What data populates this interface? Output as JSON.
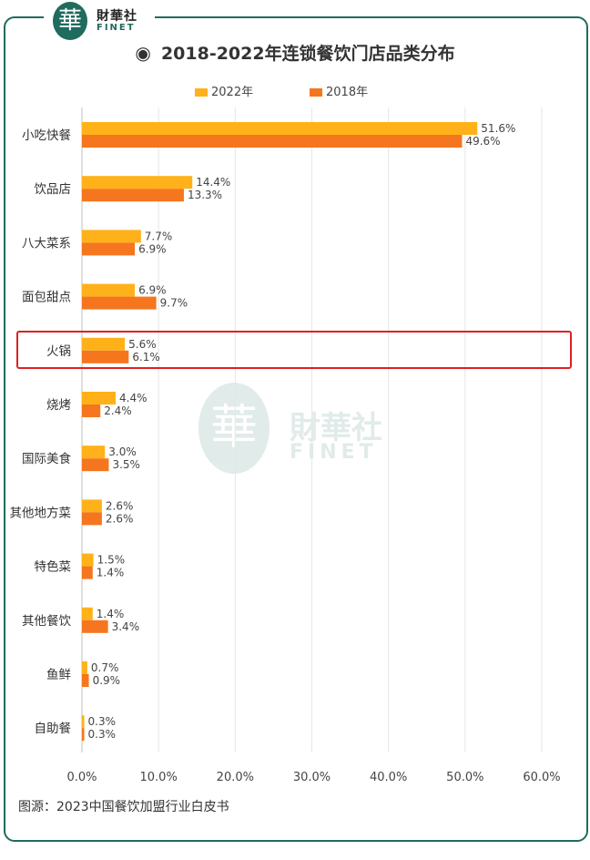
{
  "logo": {
    "glyph": "華",
    "name_cn": "財華社",
    "name_en": "FINET"
  },
  "title_icon": "◉",
  "chart_data": {
    "type": "bar",
    "orientation": "horizontal",
    "title": "2018-2022年连锁餐饮门店品类分布",
    "categories": [
      "小吃快餐",
      "饮品店",
      "八大菜系",
      "面包甜点",
      "火锅",
      "烧烤",
      "国际美食",
      "其他地方菜",
      "特色菜",
      "其他餐饮",
      "鱼鲜",
      "自助餐"
    ],
    "series": [
      {
        "name": "2022年",
        "color": "#ffb119",
        "values": [
          51.6,
          14.4,
          7.7,
          6.9,
          5.6,
          4.4,
          3.0,
          2.6,
          1.5,
          1.4,
          0.7,
          0.3
        ]
      },
      {
        "name": "2018年",
        "color": "#f5761f",
        "values": [
          49.6,
          13.3,
          6.9,
          9.7,
          6.1,
          2.4,
          3.5,
          2.6,
          1.4,
          3.4,
          0.9,
          0.3
        ]
      }
    ],
    "xlim": [
      0,
      60
    ],
    "xticks": [
      "0.0%",
      "10.0%",
      "20.0%",
      "30.0%",
      "40.0%",
      "50.0%",
      "60.0%"
    ],
    "value_suffix": "%",
    "legend_position": "top",
    "grid": true,
    "highlighted_category": "火锅",
    "highlight_color": "#e02020"
  },
  "source": "图源：2023中国餐饮加盟行业白皮书"
}
